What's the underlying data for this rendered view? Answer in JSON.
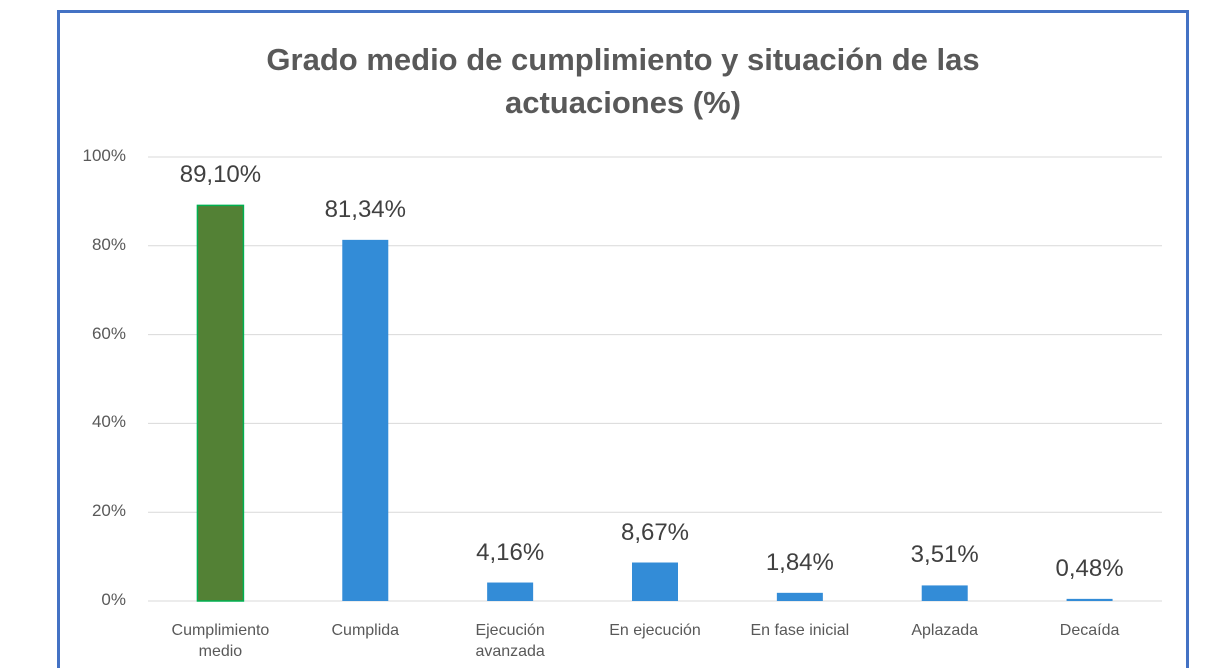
{
  "chart_data": {
    "type": "bar",
    "title": "Grado medio de cumplimiento y situación de las actuaciones (%)",
    "categories": [
      "Cumplimiento medio",
      "Cumplida",
      "Ejecución avanzada",
      "En ejecución",
      "En fase inicial",
      "Aplazada",
      "Decaída"
    ],
    "values": [
      89.1,
      81.34,
      4.16,
      8.67,
      1.84,
      3.51,
      0.48
    ],
    "value_labels": [
      "89,10%",
      "81,34%",
      "4,16%",
      "8,67%",
      "1,84%",
      "3,51%",
      "0,48%"
    ],
    "colors": [
      "#538135",
      "#338cd7",
      "#338cd7",
      "#338cd7",
      "#338cd7",
      "#338cd7",
      "#338cd7"
    ],
    "ylim": [
      0,
      100
    ],
    "yticks": [
      {
        "value": 0,
        "label": "0%"
      },
      {
        "value": 20,
        "label": "20%"
      },
      {
        "value": 40,
        "label": "40%"
      },
      {
        "value": 60,
        "label": "60%"
      },
      {
        "value": 80,
        "label": "80%"
      },
      {
        "value": 100,
        "label": "100%"
      }
    ],
    "grid": true
  }
}
